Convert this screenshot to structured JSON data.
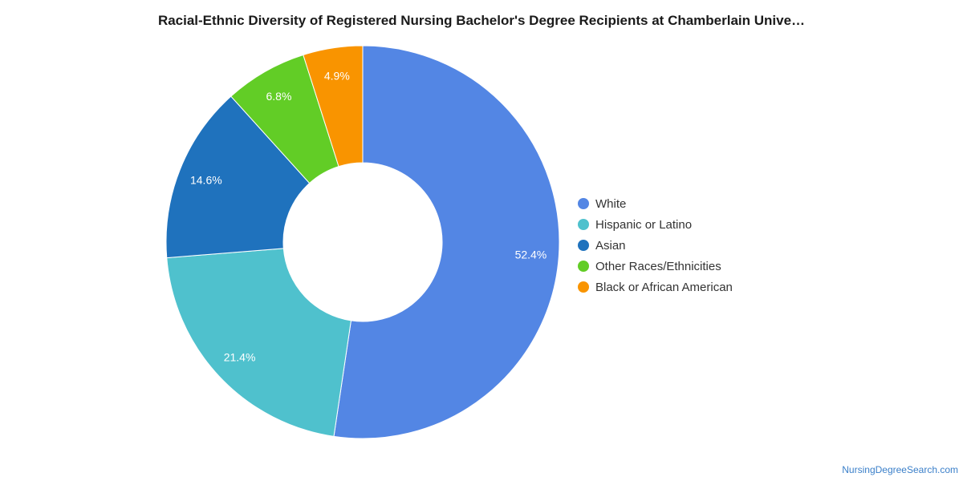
{
  "chart_data": {
    "type": "pie",
    "title": "Racial-Ethnic Diversity of Registered Nursing Bachelor's Degree Recipients at Chamberlain Unive…",
    "categories": [
      "White",
      "Hispanic or Latino",
      "Asian",
      "Other Races/Ethnicities",
      "Black or African American"
    ],
    "values": [
      52.4,
      21.4,
      14.6,
      6.8,
      4.9
    ],
    "value_labels": [
      "52.4%",
      "21.4%",
      "14.6%",
      "6.8%",
      "4.9%"
    ],
    "colors": [
      "#5386e4",
      "#4fc1cd",
      "#1f72bd",
      "#62cd26",
      "#f99400"
    ],
    "donut": true,
    "legend_position": "right"
  },
  "footer": {
    "source": "NursingDegreeSearch.com"
  }
}
